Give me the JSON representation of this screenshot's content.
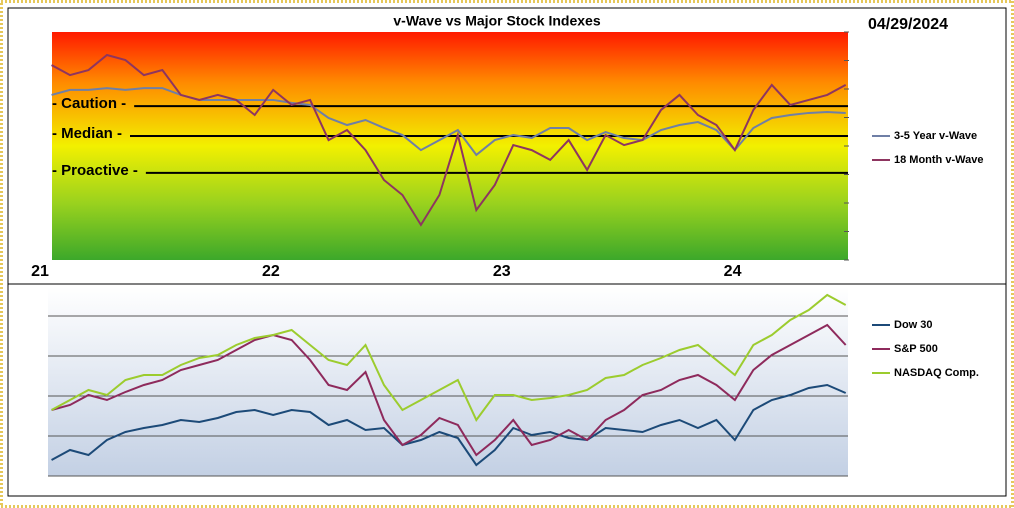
{
  "chart_data": [
    {
      "type": "line",
      "title": "v-Wave vs Major Stock Indexes",
      "annotation": "04/29/2024",
      "x": [
        21.05,
        21.13,
        21.21,
        21.29,
        21.37,
        21.45,
        21.53,
        21.61,
        21.69,
        21.77,
        21.85,
        21.93,
        22.01,
        22.09,
        22.17,
        22.25,
        22.33,
        22.41,
        22.49,
        22.57,
        22.65,
        22.73,
        22.81,
        22.89,
        22.97,
        23.05,
        23.13,
        23.21,
        23.29,
        23.37,
        23.45,
        23.53,
        23.61,
        23.69,
        23.77,
        23.85,
        23.93,
        24.01,
        24.09,
        24.17,
        24.25,
        24.33,
        24.41,
        24.49
      ],
      "xlim": [
        21,
        24.5
      ],
      "xticks": [
        21,
        22,
        23,
        24
      ],
      "ylim": [
        0,
        100
      ],
      "yticks": [
        0,
        12.5,
        25,
        37.5,
        50,
        62.5,
        75,
        87.5,
        100
      ],
      "reference_lines": [
        {
          "label": "- Caution -",
          "value": 67.5
        },
        {
          "label": "- Median -",
          "value": 54.4
        },
        {
          "label": "- Proactive -",
          "value": 38.2
        }
      ],
      "series": [
        {
          "name": "3-5 Year v-Wave",
          "color": "#6f7fa6",
          "values": [
            72.4,
            74.6,
            74.6,
            75.4,
            74.6,
            75.4,
            75.4,
            72.4,
            70.2,
            70.2,
            70.2,
            70.2,
            70.2,
            68.9,
            68.0,
            62.3,
            59.2,
            61.4,
            57.9,
            54.8,
            48.2,
            52.6,
            57.0,
            46.1,
            52.6,
            54.8,
            53.5,
            57.9,
            57.9,
            52.6,
            56.1,
            53.5,
            52.6,
            57.0,
            59.2,
            60.5,
            57.0,
            48.2,
            57.9,
            62.3,
            63.6,
            64.5,
            64.9,
            64.5
          ]
        },
        {
          "name": "18 Month v-Wave",
          "color": "#8e3560",
          "values": [
            85.5,
            81.1,
            83.3,
            89.9,
            87.7,
            81.1,
            83.3,
            72.4,
            70.2,
            72.4,
            70.2,
            63.6,
            74.6,
            68.0,
            70.2,
            52.6,
            57.0,
            48.2,
            35.1,
            28.5,
            15.4,
            28.5,
            54.8,
            21.9,
            32.9,
            50.4,
            48.2,
            43.9,
            52.6,
            39.5,
            54.8,
            50.4,
            52.6,
            65.8,
            72.4,
            63.6,
            59.2,
            48.2,
            65.8,
            76.8,
            68.0,
            70.2,
            72.4,
            76.8
          ]
        }
      ]
    },
    {
      "type": "line",
      "x": [
        21.05,
        21.13,
        21.21,
        21.29,
        21.37,
        21.45,
        21.53,
        21.61,
        21.69,
        21.77,
        21.85,
        21.93,
        22.01,
        22.09,
        22.17,
        22.25,
        22.33,
        22.41,
        22.49,
        22.57,
        22.65,
        22.73,
        22.81,
        22.89,
        22.97,
        23.05,
        23.13,
        23.21,
        23.29,
        23.37,
        23.45,
        23.53,
        23.61,
        23.69,
        23.77,
        23.85,
        23.93,
        24.01,
        24.09,
        24.17,
        24.25,
        24.33,
        24.41,
        24.49
      ],
      "xlim": [
        21,
        24.5
      ],
      "ylim": [
        0,
        94.5
      ],
      "yticks": [
        0,
        20,
        40,
        60,
        80
      ],
      "grid": true,
      "series": [
        {
          "name": "Dow 30",
          "color": "#1c4a78",
          "values": [
            8,
            13,
            10.5,
            18,
            22,
            24,
            25.5,
            28,
            27,
            29,
            32,
            33,
            30.5,
            33,
            32,
            25.5,
            28,
            23,
            24,
            15.5,
            18,
            22,
            19,
            5.5,
            13,
            24,
            20.5,
            22,
            19,
            18,
            24,
            23,
            22,
            25.5,
            28,
            24,
            28,
            18,
            33,
            38,
            40.5,
            44,
            45.5,
            41.5
          ]
        },
        {
          "name": "S&P 500",
          "color": "#8e2a5c",
          "values": [
            33,
            35.5,
            40.5,
            38,
            42,
            45.5,
            48,
            53,
            55.5,
            58,
            63,
            68,
            70.5,
            68,
            58,
            45.5,
            43,
            52,
            28,
            15.5,
            20.5,
            29,
            25.5,
            10.5,
            18,
            28,
            15.5,
            18,
            23,
            18,
            28,
            33,
            40.5,
            43,
            48,
            50.5,
            45.5,
            38,
            53,
            60.5,
            65.5,
            70.5,
            75.5,
            65.5
          ]
        },
        {
          "name": "NASDAQ Comp.",
          "color": "#9ccc2e",
          "values": [
            33,
            38,
            43,
            40.5,
            48,
            50.5,
            50.5,
            55.5,
            59,
            60.5,
            65.5,
            69,
            70.5,
            73,
            65.5,
            58,
            55.5,
            65.5,
            45.5,
            33,
            38,
            43,
            48,
            28,
            40.5,
            40.5,
            38,
            39,
            40.5,
            43,
            49,
            50.5,
            55.5,
            59,
            63,
            65.5,
            58,
            50.5,
            65.5,
            70.5,
            78,
            83,
            90.5,
            85.5
          ]
        }
      ]
    }
  ]
}
